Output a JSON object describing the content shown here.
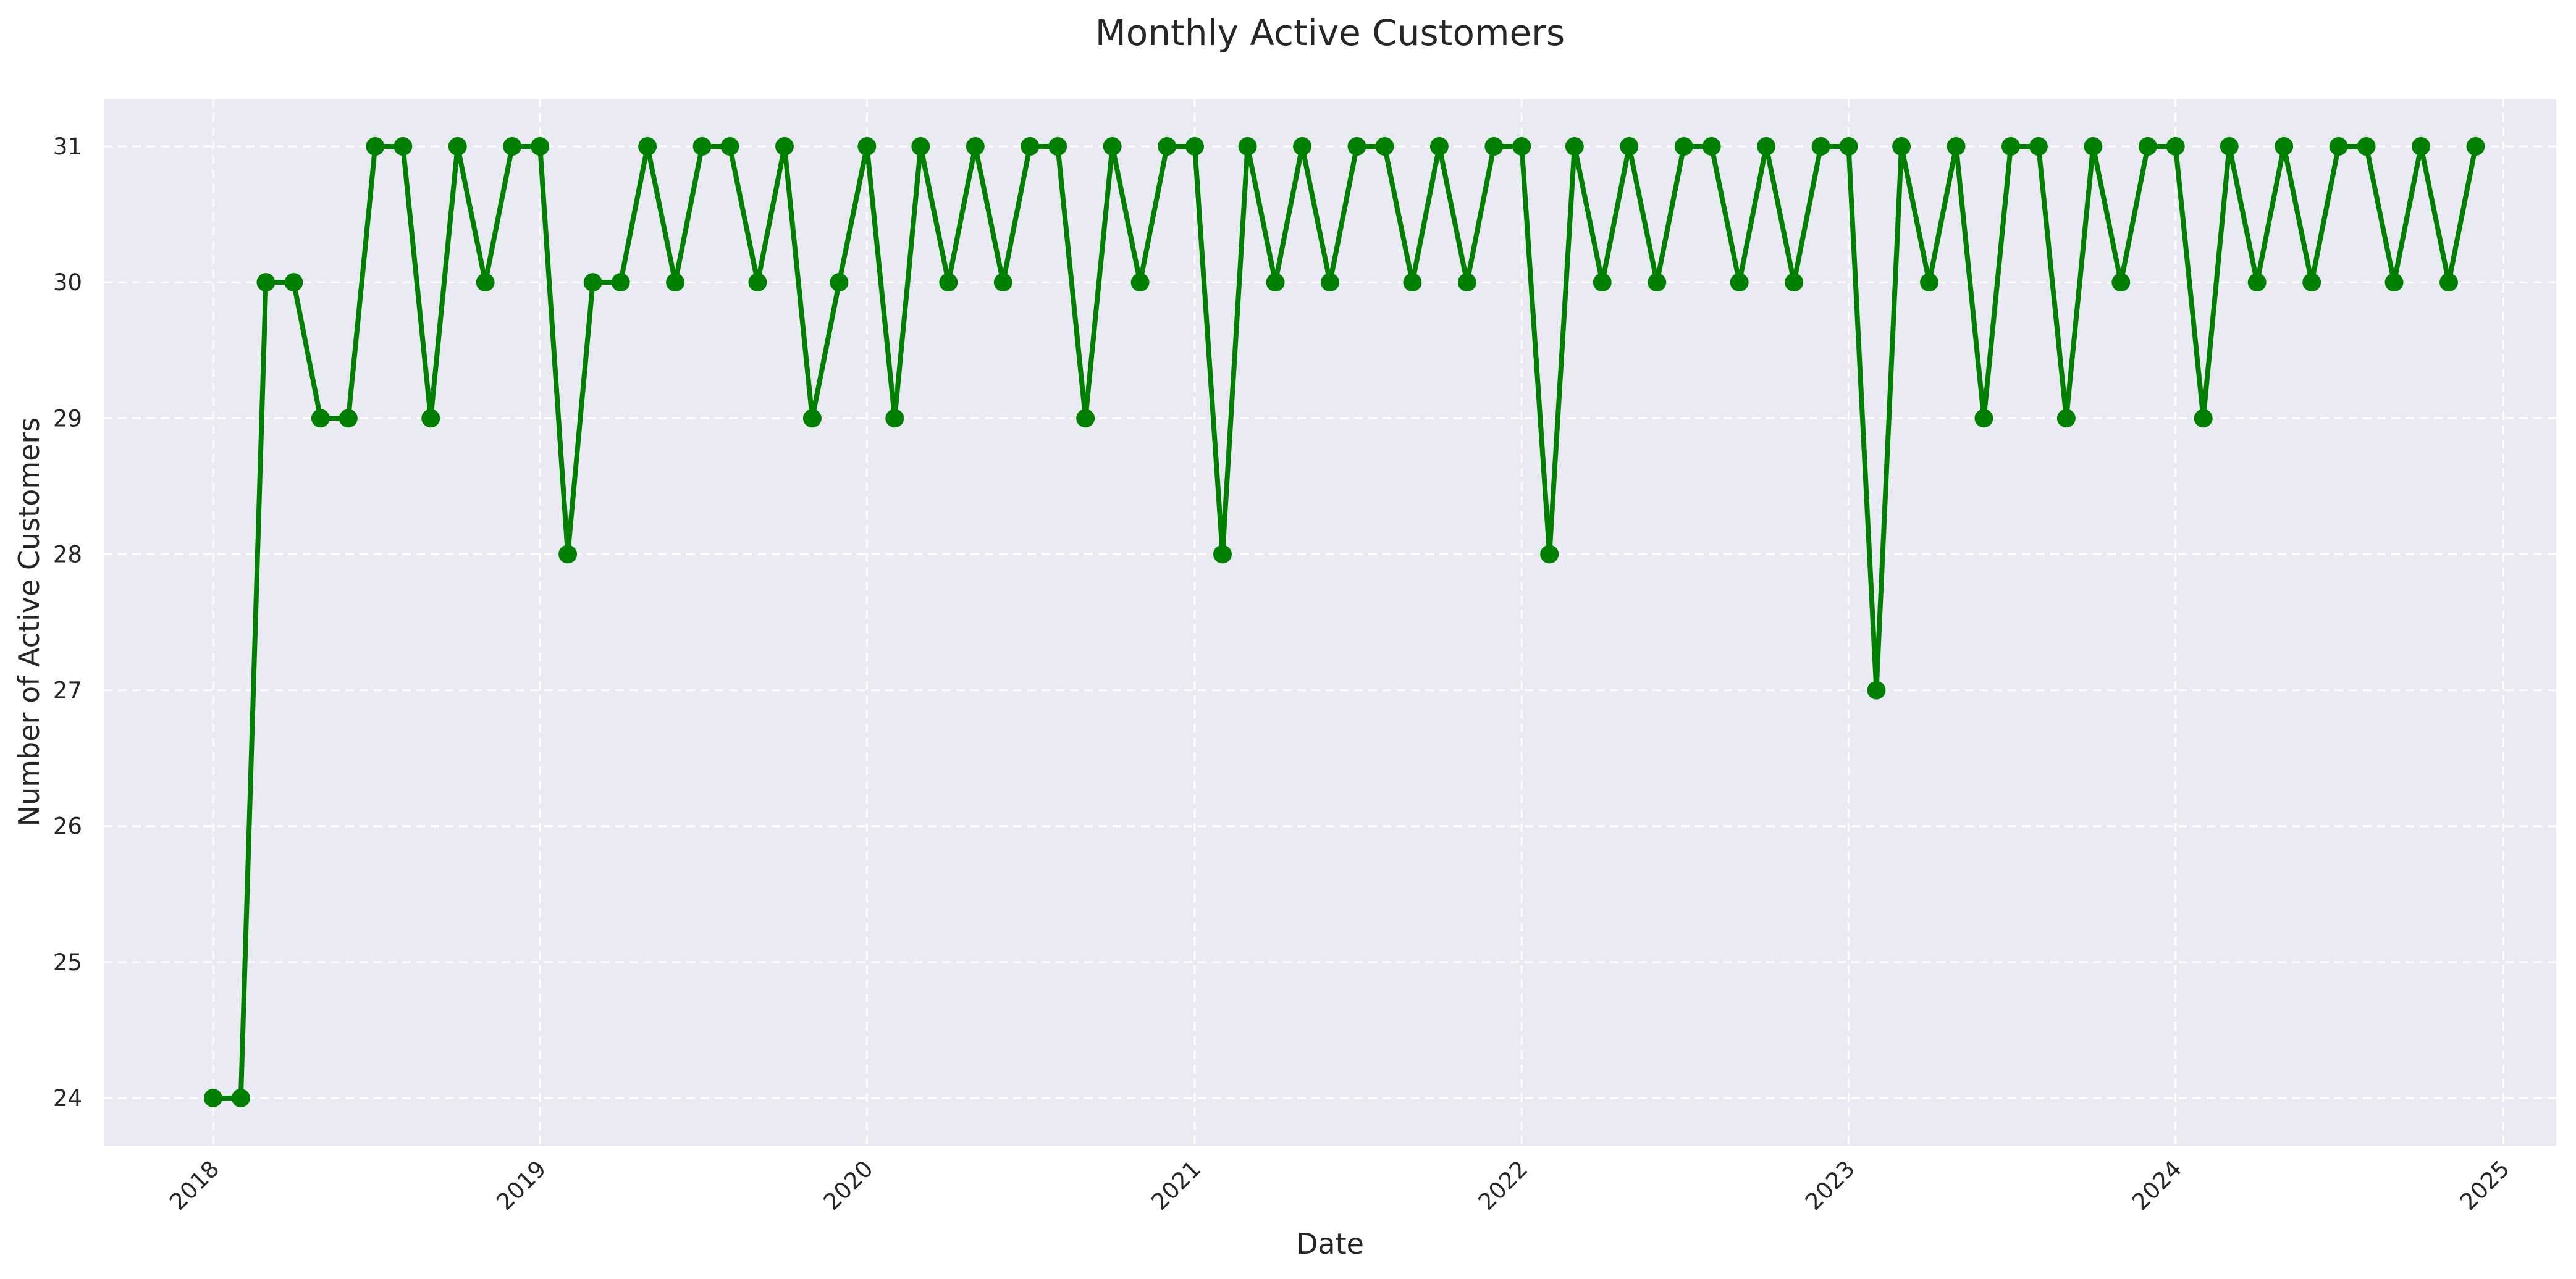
{
  "chart_data": {
    "type": "line",
    "title": "Monthly Active Customers",
    "xlabel": "Date",
    "ylabel": "Number of Active Customers",
    "x_ticks": [
      "2018",
      "2019",
      "2020",
      "2021",
      "2022",
      "2023",
      "2024",
      "2025"
    ],
    "y_ticks": [
      24,
      25,
      26,
      27,
      28,
      29,
      30,
      31
    ],
    "xlim": [
      "2017-09-01",
      "2025-03-01"
    ],
    "ylim": [
      23.65,
      31.35
    ],
    "grid": true,
    "marker": "circle",
    "colors": {
      "series": "#008000",
      "background": "#eaeaf2",
      "grid": "#ffffff"
    },
    "series": [
      {
        "x": [
          "2018-01",
          "2018-02",
          "2018-03",
          "2018-04",
          "2018-05",
          "2018-06",
          "2018-07",
          "2018-08",
          "2018-09",
          "2018-10",
          "2018-11",
          "2018-12",
          "2019-01",
          "2019-02",
          "2019-03",
          "2019-04",
          "2019-05",
          "2019-06",
          "2019-07",
          "2019-08",
          "2019-09",
          "2019-10",
          "2019-11",
          "2019-12",
          "2020-01",
          "2020-02",
          "2020-03",
          "2020-04",
          "2020-05",
          "2020-06",
          "2020-07",
          "2020-08",
          "2020-09",
          "2020-10",
          "2020-11",
          "2020-12",
          "2021-01",
          "2021-02",
          "2021-03",
          "2021-04",
          "2021-05",
          "2021-06",
          "2021-07",
          "2021-08",
          "2021-09",
          "2021-10",
          "2021-11",
          "2021-12",
          "2022-01",
          "2022-02",
          "2022-03",
          "2022-04",
          "2022-05",
          "2022-06",
          "2022-07",
          "2022-08",
          "2022-09",
          "2022-10",
          "2022-11",
          "2022-12",
          "2023-01",
          "2023-02",
          "2023-03",
          "2023-04",
          "2023-05",
          "2023-06",
          "2023-07",
          "2023-08",
          "2023-09",
          "2023-10",
          "2023-11",
          "2023-12",
          "2024-01",
          "2024-02",
          "2024-03",
          "2024-04",
          "2024-05",
          "2024-06",
          "2024-07",
          "2024-08",
          "2024-09",
          "2024-10",
          "2024-11",
          "2024-12"
        ],
        "values": [
          24,
          24,
          30,
          30,
          29,
          29,
          31,
          31,
          29,
          31,
          30,
          31,
          31,
          28,
          30,
          30,
          31,
          30,
          31,
          31,
          30,
          31,
          29,
          30,
          31,
          29,
          31,
          30,
          31,
          30,
          31,
          31,
          29,
          31,
          30,
          31,
          31,
          28,
          31,
          30,
          31,
          30,
          31,
          31,
          30,
          31,
          30,
          31,
          31,
          28,
          31,
          30,
          31,
          30,
          31,
          31,
          30,
          31,
          30,
          31,
          31,
          27,
          31,
          30,
          31,
          29,
          31,
          31,
          29,
          31,
          30,
          31,
          31,
          29,
          31,
          30,
          31,
          30,
          31,
          31,
          30,
          31,
          30,
          31
        ]
      }
    ]
  }
}
